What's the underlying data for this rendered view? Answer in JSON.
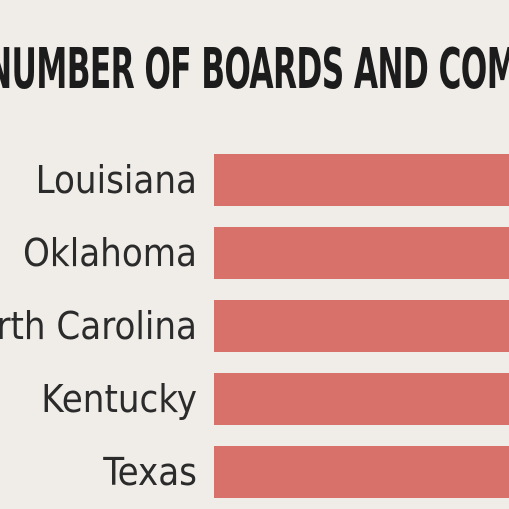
{
  "chart_data": {
    "type": "bar",
    "orientation": "horizontal",
    "title": "NUMBER OF BOARDS AND COMMIS",
    "categories": [
      "Louisiana",
      "Oklahoma",
      "North Carolina",
      "Kentucky",
      "Texas"
    ],
    "series": [
      {
        "values": [
          1,
          1,
          1,
          1,
          1
        ]
      }
    ],
    "xlim": [
      0,
      1
    ],
    "grid": false,
    "legend": "none",
    "colors": {
      "bar": "#d9716b",
      "background": "#f0ede8",
      "text": "#2b2b2b"
    }
  }
}
